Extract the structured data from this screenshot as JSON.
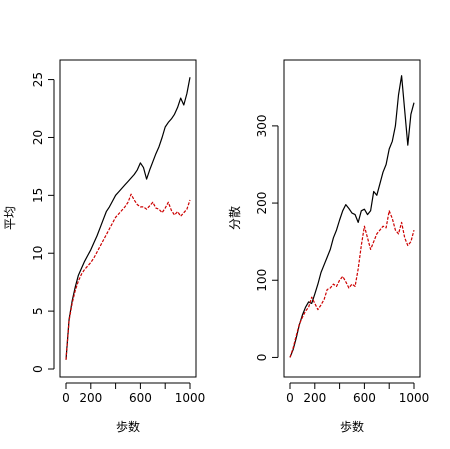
{
  "chart_data": [
    {
      "type": "line",
      "title": "",
      "xlabel": "歩数",
      "ylabel": "平均",
      "xlim": [
        0,
        1000
      ],
      "ylim": [
        0,
        26
      ],
      "x_ticks": [
        0,
        200,
        600,
        1000
      ],
      "y_ticks": [
        0,
        5,
        10,
        15,
        20,
        25
      ],
      "grid": false,
      "series": [
        {
          "color": "#000000",
          "dash": "solid",
          "x": [
            0,
            25,
            50,
            75,
            100,
            125,
            150,
            175,
            200,
            225,
            250,
            275,
            300,
            325,
            350,
            375,
            400,
            425,
            450,
            475,
            500,
            525,
            550,
            575,
            600,
            625,
            650,
            675,
            700,
            725,
            750,
            775,
            800,
            825,
            850,
            875,
            900,
            925,
            950,
            975,
            1000
          ],
          "values": [
            0.8,
            4.3,
            5.9,
            7.1,
            8.1,
            8.7,
            9.3,
            9.8,
            10.3,
            10.9,
            11.5,
            12.2,
            12.9,
            13.6,
            14.0,
            14.5,
            15.0,
            15.3,
            15.6,
            15.9,
            16.2,
            16.5,
            16.8,
            17.2,
            17.8,
            17.4,
            16.4,
            17.2,
            17.9,
            18.6,
            19.2,
            20.0,
            20.9,
            21.3,
            21.6,
            22.0,
            22.6,
            23.4,
            22.8,
            23.8,
            25.2
          ]
        },
        {
          "color": "#cc0000",
          "dash": "dashed",
          "x": [
            0,
            25,
            50,
            75,
            100,
            125,
            150,
            175,
            200,
            225,
            250,
            275,
            300,
            325,
            350,
            375,
            400,
            425,
            450,
            475,
            500,
            525,
            550,
            575,
            600,
            625,
            650,
            675,
            700,
            725,
            750,
            775,
            800,
            825,
            850,
            875,
            900,
            925,
            950,
            975,
            1000
          ],
          "values": [
            0.8,
            4.2,
            5.7,
            6.8,
            7.6,
            8.2,
            8.6,
            8.9,
            9.2,
            9.6,
            10.1,
            10.6,
            11.1,
            11.6,
            12.1,
            12.6,
            13.1,
            13.4,
            13.7,
            14.0,
            14.4,
            15.1,
            14.6,
            14.2,
            14.0,
            14.0,
            13.8,
            14.1,
            14.4,
            13.9,
            13.8,
            13.5,
            13.9,
            14.4,
            13.7,
            13.3,
            13.6,
            13.2,
            13.5,
            13.8,
            14.6
          ]
        }
      ]
    },
    {
      "type": "line",
      "title": "",
      "xlabel": "歩数",
      "ylabel": "分散",
      "xlim": [
        0,
        1000
      ],
      "ylim": [
        -15,
        375
      ],
      "x_ticks": [
        0,
        200,
        600,
        1000
      ],
      "y_ticks": [
        0,
        100,
        200,
        300
      ],
      "grid": false,
      "series": [
        {
          "color": "#000000",
          "dash": "solid",
          "x": [
            0,
            25,
            50,
            75,
            100,
            125,
            150,
            175,
            200,
            225,
            250,
            275,
            300,
            325,
            350,
            375,
            400,
            425,
            450,
            475,
            500,
            525,
            550,
            575,
            600,
            625,
            650,
            675,
            700,
            725,
            750,
            775,
            800,
            825,
            850,
            875,
            900,
            925,
            950,
            975,
            1000
          ],
          "values": [
            0,
            10,
            25,
            42,
            55,
            65,
            72,
            70,
            82,
            95,
            110,
            120,
            130,
            140,
            155,
            165,
            178,
            190,
            198,
            193,
            187,
            185,
            175,
            190,
            192,
            185,
            190,
            215,
            210,
            225,
            240,
            250,
            270,
            280,
            300,
            340,
            365,
            320,
            275,
            315,
            330
          ]
        },
        {
          "color": "#cc0000",
          "dash": "dashed",
          "x": [
            0,
            25,
            50,
            75,
            100,
            125,
            150,
            175,
            200,
            225,
            250,
            275,
            300,
            325,
            350,
            375,
            400,
            425,
            450,
            475,
            500,
            525,
            550,
            575,
            600,
            625,
            650,
            675,
            700,
            725,
            750,
            775,
            800,
            825,
            850,
            875,
            900,
            925,
            950,
            975,
            1000
          ],
          "values": [
            0,
            12,
            28,
            43,
            52,
            60,
            65,
            78,
            70,
            62,
            68,
            75,
            88,
            90,
            95,
            92,
            100,
            105,
            98,
            90,
            95,
            92,
            115,
            145,
            170,
            155,
            140,
            150,
            160,
            165,
            170,
            168,
            190,
            180,
            165,
            160,
            175,
            155,
            145,
            150,
            165
          ]
        }
      ]
    }
  ]
}
